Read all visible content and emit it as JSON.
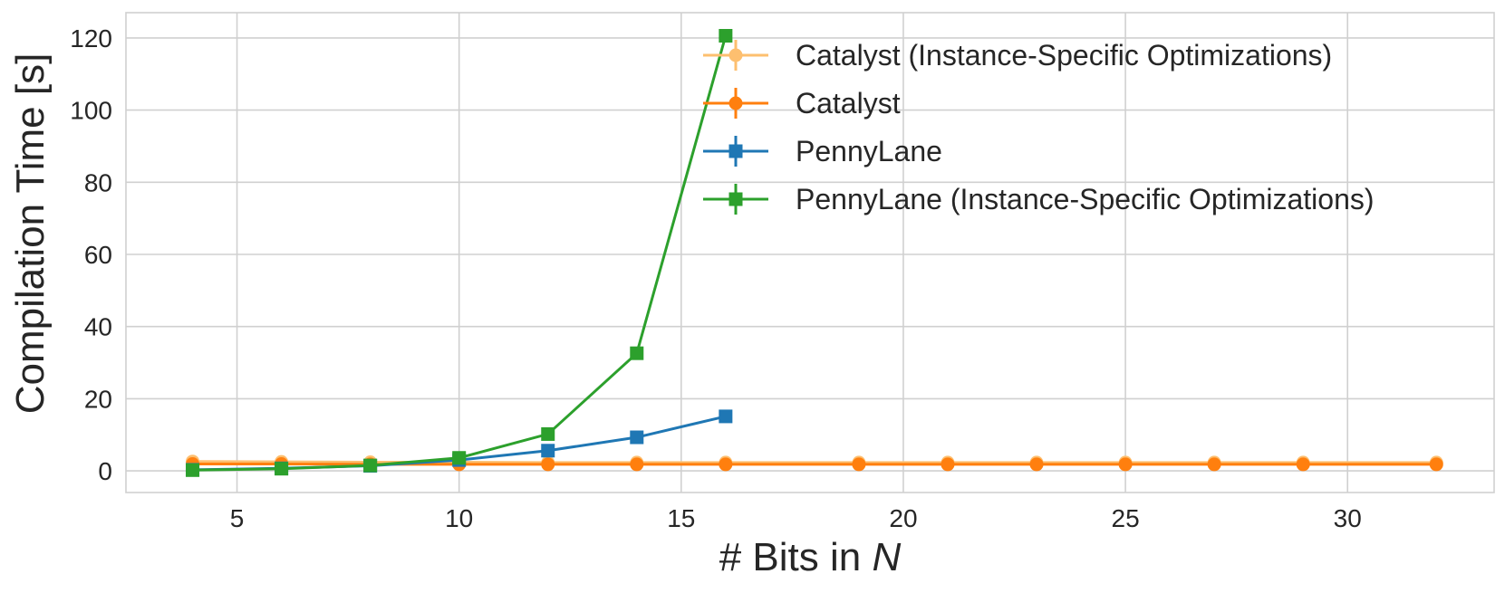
{
  "chart_data": {
    "type": "line",
    "title": "",
    "xlabel_prefix": "# Bits in ",
    "xlabel_var": "N",
    "ylabel": "Compilation Time [s]",
    "xlim": [
      2.5,
      33.3
    ],
    "ylim": [
      -6,
      127
    ],
    "xticks": [
      5,
      10,
      15,
      20,
      25,
      30
    ],
    "yticks": [
      0,
      20,
      40,
      60,
      80,
      100,
      120
    ],
    "grid": true,
    "legend_position": "top-right",
    "series": [
      {
        "name": "Catalyst (Instance-Specific Optimizations)",
        "marker": "circle",
        "color": "#fdbf6f",
        "x": [
          4,
          6,
          8,
          10,
          12,
          14,
          16,
          19,
          21,
          23,
          25,
          27,
          29,
          32
        ],
        "y": [
          2.6,
          2.5,
          2.4,
          2.4,
          2.3,
          2.3,
          2.3,
          2.3,
          2.3,
          2.3,
          2.3,
          2.3,
          2.3,
          2.3
        ]
      },
      {
        "name": "Catalyst",
        "marker": "circle",
        "color": "#ff7f0e",
        "x": [
          4,
          6,
          8,
          10,
          12,
          14,
          16,
          19,
          21,
          23,
          25,
          27,
          29,
          32
        ],
        "y": [
          1.9,
          1.9,
          1.8,
          1.8,
          1.8,
          1.8,
          1.8,
          1.8,
          1.8,
          1.8,
          1.8,
          1.8,
          1.8,
          1.8
        ]
      },
      {
        "name": "PennyLane",
        "marker": "square",
        "color": "#1f77b4",
        "x": [
          4,
          6,
          8,
          10,
          12,
          14,
          16
        ],
        "y": [
          0.3,
          0.7,
          1.4,
          3.0,
          5.6,
          9.3,
          15.1
        ]
      },
      {
        "name": "PennyLane (Instance-Specific Optimizations)",
        "marker": "square",
        "color": "#2ca02c",
        "x": [
          4,
          6,
          8,
          10,
          12,
          14,
          16
        ],
        "y": [
          0.2,
          0.6,
          1.5,
          3.6,
          10.2,
          32.6,
          120.6
        ]
      }
    ]
  }
}
